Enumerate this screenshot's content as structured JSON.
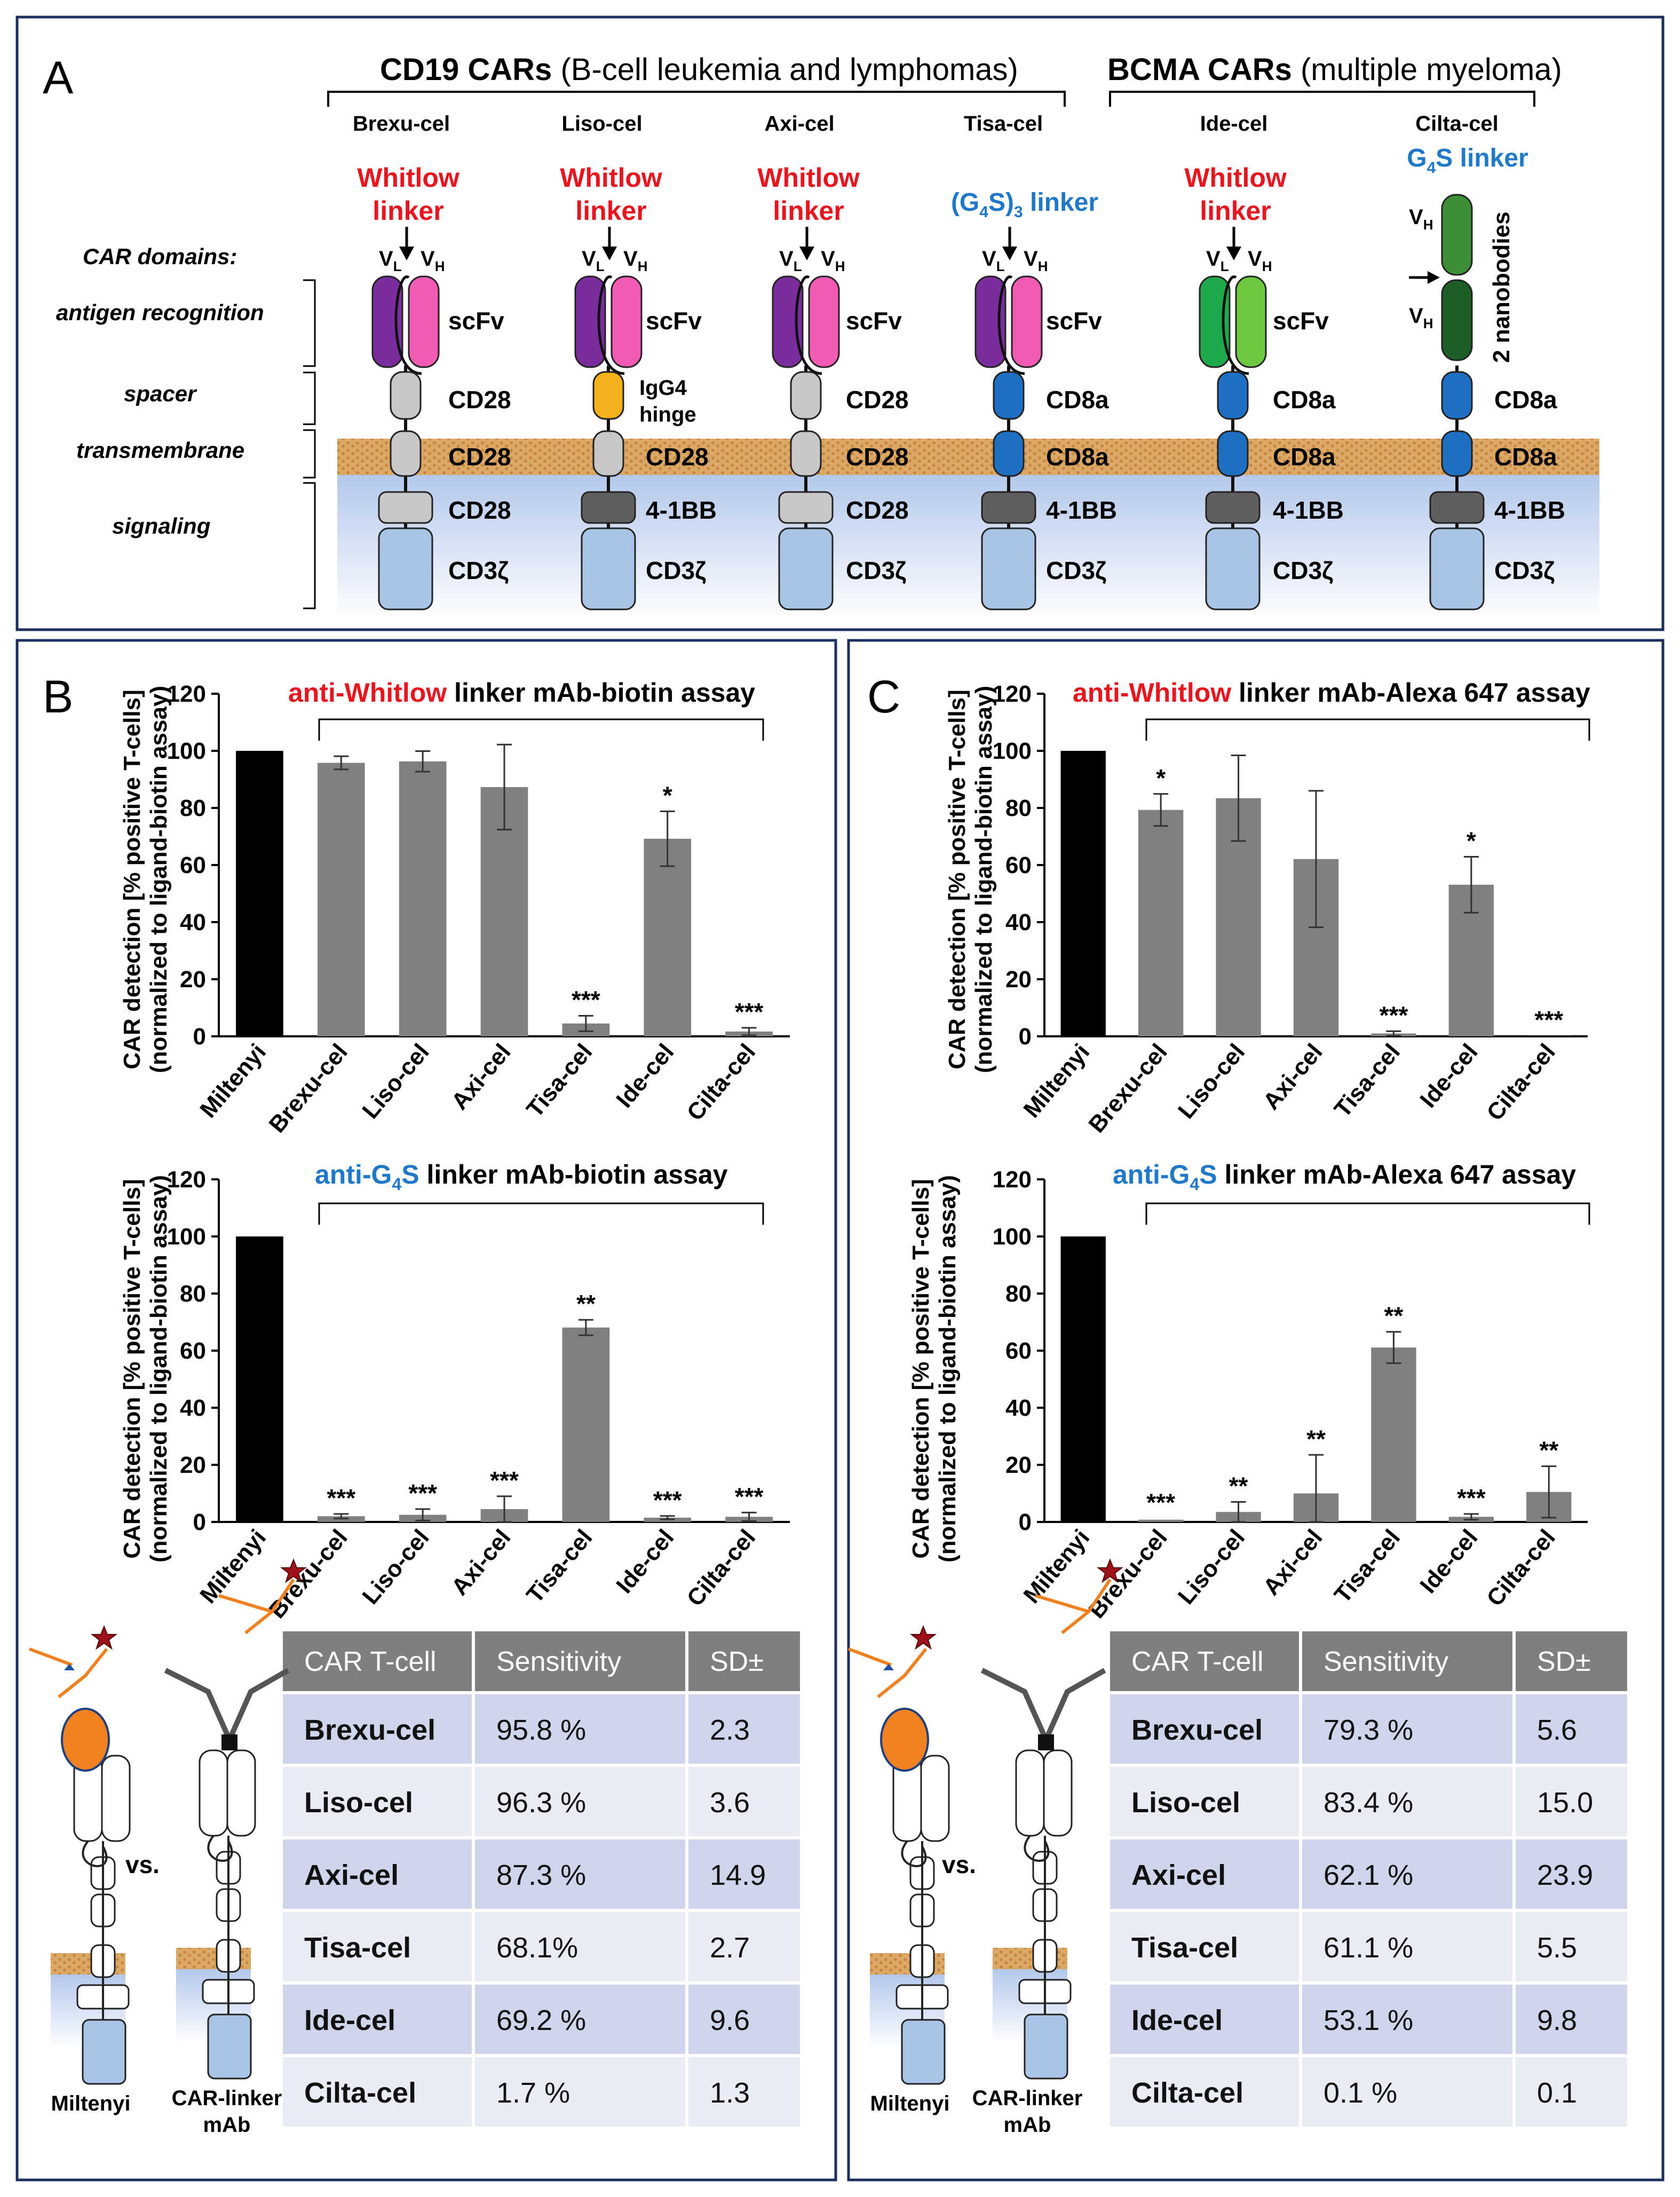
{
  "colors": {
    "whitlow": "#e8141e",
    "g4s": "#1f78c8",
    "frame": "#1d2f5c",
    "bar_grey": "#808080",
    "bar_black": "#000000",
    "table_header": "#7f7f7f",
    "row_a": "#cfd5ea",
    "row_b": "#e9ebf5",
    "membrane": "#d9a55e",
    "cyto": "#b4c8ec",
    "purple": "#7a2d9c",
    "pink": "#f25ab4",
    "grey_dom": "#c8c8c8",
    "dark_grey_dom": "#5f5f5f",
    "orange_dom": "#f3b21b",
    "blue_dom": "#1f6fc5",
    "light_blue_dom": "#a8c4e6",
    "green_a": "#1fa84c",
    "green_b": "#6ec83f",
    "green_dark": "#1d5e26",
    "green_mid": "#3f8f3a"
  },
  "panel_a": {
    "letter": "A",
    "cd19_title_bold": "CD19 CARs",
    "cd19_title_rest": " (B-cell leukemia and lymphomas)",
    "bcma_title_bold": "BCMA CARs",
    "bcma_title_rest": " (multiple myeloma)",
    "domains_title": "CAR domains:",
    "domain_antigen": "antigen recognition",
    "domain_spacer": "spacer",
    "domain_transmembrane": "transmembrane",
    "domain_signaling": "signaling",
    "products": [
      {
        "name": "Brexu-cel",
        "linker_l1": "Whitlow",
        "linker_l2": "linker",
        "recog": "scFv",
        "spacer": "CD28",
        "tm": "CD28",
        "sig": "CD28",
        "cd3": "CD3ζ"
      },
      {
        "name": "Liso-cel",
        "linker_l1": "Whitlow",
        "linker_l2": "linker",
        "recog": "scFv",
        "spacer_l1": "IgG4",
        "spacer_l2": "hinge",
        "tm": "CD28",
        "sig": "4-1BB",
        "cd3": "CD3ζ"
      },
      {
        "name": "Axi-cel",
        "linker_l1": "Whitlow",
        "linker_l2": "linker",
        "recog": "scFv",
        "spacer": "CD28",
        "tm": "CD28",
        "sig": "CD28",
        "cd3": "CD3ζ"
      },
      {
        "name": "Tisa-cel",
        "linker_pre": "(G",
        "linker_sub": "4",
        "linker_mid": "S)",
        "linker_sub2": "3",
        "linker_post": " linker",
        "recog": "scFv",
        "spacer": "CD8a",
        "tm": "CD8a",
        "sig": "4-1BB",
        "cd3": "CD3ζ"
      },
      {
        "name": "Ide-cel",
        "linker_l1": "Whitlow",
        "linker_l2": "linker",
        "recog": "scFv",
        "spacer": "CD8a",
        "tm": "CD8a",
        "sig": "4-1BB",
        "cd3": "CD3ζ"
      },
      {
        "name": "Cilta-cel",
        "linker_pre": "G",
        "linker_sub": "4",
        "linker_post": "S linker",
        "recog": "2 nanobodies",
        "spacer": "CD8a",
        "tm": "CD8a",
        "sig": "4-1BB",
        "cd3": "CD3ζ"
      }
    ],
    "vl": "V",
    "vl_sub": "L",
    "vh": "V",
    "vh_sub": "H"
  },
  "panel_b": {
    "letter": "B",
    "ylabel_1": "CAR detection [% positive T-cells]",
    "ylabel_2": "(normalized to ligand-biotin assay)",
    "top_title_red": "anti-Whitlow",
    "top_title_rest": " linker mAb-biotin assay",
    "bottom_title_pre": "anti-G",
    "bottom_title_sub": "4",
    "bottom_title_s": "S",
    "bottom_title_rest": " linker mAb-biotin assay",
    "miltenyi_label": "Miltenyi",
    "linker_mab_l1": "CAR-linker",
    "linker_mab_l2": "mAb",
    "vs": "vs.",
    "table": {
      "headers": [
        "CAR T-cell",
        "Sensitivity",
        "SD±"
      ],
      "rows": [
        [
          "Brexu-cel",
          "95.8 %",
          "2.3"
        ],
        [
          "Liso-cel",
          "96.3 %",
          "3.6"
        ],
        [
          "Axi-cel",
          "87.3 %",
          "14.9"
        ],
        [
          "Tisa-cel",
          "68.1%",
          "2.7"
        ],
        [
          "Ide-cel",
          "69.2 %",
          "9.6"
        ],
        [
          "Cilta-cel",
          "1.7 %",
          "1.3"
        ]
      ]
    }
  },
  "panel_c": {
    "letter": "C",
    "ylabel_1": "CAR detection [% positive T-cells]",
    "ylabel_2": "(normalized to ligand-biotin assay)",
    "top_title_red": "anti-Whitlow",
    "top_title_rest": " linker mAb-Alexa 647 assay",
    "bottom_title_pre": "anti-G",
    "bottom_title_sub": "4",
    "bottom_title_s": "S",
    "bottom_title_rest": " linker mAb-Alexa 647 assay",
    "miltenyi_label": "Miltenyi",
    "linker_mab_l1": "CAR-linker",
    "linker_mab_l2": "mAb",
    "vs": "vs.",
    "table": {
      "headers": [
        "CAR T-cell",
        "Sensitivity",
        "SD±"
      ],
      "rows": [
        [
          "Brexu-cel",
          "79.3 %",
          "5.6"
        ],
        [
          "Liso-cel",
          "83.4 %",
          "15.0"
        ],
        [
          "Axi-cel",
          "62.1 %",
          "23.9"
        ],
        [
          "Tisa-cel",
          "61.1 %",
          "5.5"
        ],
        [
          "Ide-cel",
          "53.1 %",
          "9.8"
        ],
        [
          "Cilta-cel",
          "0.1 %",
          "0.1"
        ]
      ]
    }
  },
  "chart_data": [
    {
      "id": "B-top",
      "type": "bar",
      "title": "anti-Whitlow linker mAb-biotin assay",
      "ylabel": "CAR detection [% positive T-cells] (normalized to ligand-biotin assay)",
      "ylim": [
        0,
        120
      ],
      "yticks": [
        "0",
        "20",
        "40",
        "60",
        "80",
        "100",
        "120"
      ],
      "categories": [
        "Miltenyi",
        "Brexu-cel",
        "Liso-cel",
        "Axi-cel",
        "Tisa-cel",
        "Ide-cel",
        "Cilta-cel"
      ],
      "values": [
        100,
        95.8,
        96.3,
        87.3,
        4.5,
        69.2,
        1.7
      ],
      "errors": [
        0.3,
        2.3,
        3.6,
        14.9,
        2.7,
        9.6,
        1.3
      ],
      "significance": [
        "",
        "",
        "",
        "",
        "***",
        "*",
        "***"
      ]
    },
    {
      "id": "B-bottom",
      "type": "bar",
      "title": "anti-G4S linker mAb-biotin assay",
      "ylabel": "CAR detection [% positive T-cells] (normalized to ligand-biotin assay)",
      "ylim": [
        0,
        120
      ],
      "yticks": [
        "0",
        "20",
        "40",
        "60",
        "80",
        "100",
        "120"
      ],
      "categories": [
        "Miltenyi",
        "Brexu-cel",
        "Liso-cel",
        "Axi-cel",
        "Tisa-cel",
        "Ide-cel",
        "Cilta-cel"
      ],
      "values": [
        100,
        2,
        2.5,
        4.5,
        68.1,
        1.5,
        1.8
      ],
      "errors": [
        0.3,
        0.8,
        2,
        4.5,
        2.7,
        0.6,
        1.5
      ],
      "significance": [
        "",
        "***",
        "***",
        "***",
        "**",
        "***",
        "***"
      ]
    },
    {
      "id": "C-top",
      "type": "bar",
      "title": "anti-Whitlow linker mAb-Alexa 647 assay",
      "ylabel": "CAR detection [% positive T-cells] (normalized to ligand-biotin assay)",
      "ylim": [
        0,
        120
      ],
      "yticks": [
        "0",
        "20",
        "40",
        "60",
        "80",
        "100",
        "120"
      ],
      "categories": [
        "Miltenyi",
        "Brexu-cel",
        "Liso-cel",
        "Axi-cel",
        "Tisa-cel",
        "Ide-cel",
        "Cilta-cel"
      ],
      "values": [
        100,
        79.3,
        83.4,
        62.1,
        1,
        53.1,
        0.1
      ],
      "errors": [
        0.3,
        5.6,
        15.0,
        23.9,
        0.8,
        9.8,
        0.1
      ],
      "significance": [
        "",
        "*",
        "",
        "",
        "***",
        "*",
        "***"
      ]
    },
    {
      "id": "C-bottom",
      "type": "bar",
      "title": "anti-G4S linker mAb-Alexa 647 assay",
      "ylabel": "CAR detection [% positive T-cells] (normalized to ligand-biotin assay)",
      "ylim": [
        0,
        120
      ],
      "yticks": [
        "0",
        "20",
        "40",
        "60",
        "80",
        "100",
        "120"
      ],
      "categories": [
        "Miltenyi",
        "Brexu-cel",
        "Liso-cel",
        "Axi-cel",
        "Tisa-cel",
        "Ide-cel",
        "Cilta-cel"
      ],
      "values": [
        100,
        0.8,
        3.5,
        10,
        61.1,
        1.8,
        10.5
      ],
      "errors": [
        0.3,
        0.4,
        3.5,
        13.5,
        5.5,
        1,
        9
      ],
      "significance": [
        "",
        "***",
        "**",
        "**",
        "**",
        "***",
        "**"
      ]
    }
  ]
}
